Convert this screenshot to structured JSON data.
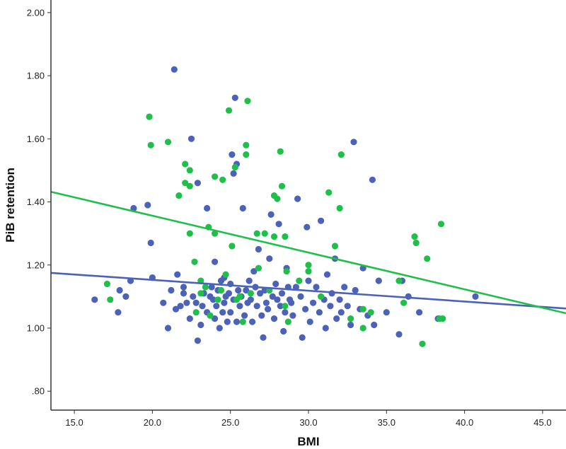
{
  "chart_data": {
    "type": "scatter",
    "title": "",
    "xlabel": "BMI",
    "ylabel": "PiB retention",
    "xlim": [
      13.5,
      46.5
    ],
    "ylim": [
      0.74,
      2.04
    ],
    "x_ticks": [
      15,
      20,
      25,
      30,
      35,
      40,
      45
    ],
    "x_tick_labels": [
      "15.0",
      "20.0",
      "25.0",
      "30.0",
      "35.0",
      "40.0",
      "45.0"
    ],
    "y_ticks": [
      0.8,
      1.0,
      1.2,
      1.4,
      1.6,
      1.8,
      2.0
    ],
    "y_tick_labels": [
      ".80",
      "1.00",
      "1.20",
      "1.40",
      "1.60",
      "1.80",
      "2.00"
    ],
    "grid": false,
    "legend": "none",
    "colors": {
      "blue": "#4c62b8",
      "green": "#1fbf4a",
      "axis": "#333333"
    },
    "series": [
      {
        "color": "#4c62b8",
        "points": [
          [
            16.3,
            1.09
          ],
          [
            17.8,
            1.05
          ],
          [
            17.9,
            1.12
          ],
          [
            18.3,
            1.1
          ],
          [
            18.8,
            1.38
          ],
          [
            18.6,
            1.15
          ],
          [
            19.7,
            1.39
          ],
          [
            19.9,
            1.27
          ],
          [
            20.0,
            1.16
          ],
          [
            20.7,
            1.08
          ],
          [
            21.0,
            1.0
          ],
          [
            21.2,
            1.12
          ],
          [
            21.4,
            1.82
          ],
          [
            21.5,
            1.06
          ],
          [
            21.6,
            1.17
          ],
          [
            21.8,
            1.07
          ],
          [
            22.0,
            1.11
          ],
          [
            22.0,
            1.13
          ],
          [
            22.2,
            1.08
          ],
          [
            22.4,
            1.03
          ],
          [
            22.5,
            1.6
          ],
          [
            22.6,
            1.1
          ],
          [
            22.8,
            1.08
          ],
          [
            22.9,
            0.96
          ],
          [
            22.9,
            1.46
          ],
          [
            23.1,
            1.01
          ],
          [
            23.2,
            1.07
          ],
          [
            23.3,
            1.11
          ],
          [
            23.5,
            1.38
          ],
          [
            23.5,
            1.05
          ],
          [
            23.7,
            1.1
          ],
          [
            23.8,
            1.13
          ],
          [
            23.9,
            1.09
          ],
          [
            24.0,
            1.21
          ],
          [
            24.0,
            1.03
          ],
          [
            24.1,
            1.07
          ],
          [
            24.2,
            1.12
          ],
          [
            24.3,
            1.0
          ],
          [
            24.4,
            1.15
          ],
          [
            24.5,
            1.05
          ],
          [
            24.6,
            1.08
          ],
          [
            24.6,
            1.16
          ],
          [
            24.7,
            1.1
          ],
          [
            24.8,
            1.02
          ],
          [
            24.9,
            1.11
          ],
          [
            25.0,
            1.05
          ],
          [
            25.0,
            1.14
          ],
          [
            25.1,
            1.55
          ],
          [
            25.2,
            1.49
          ],
          [
            25.2,
            1.09
          ],
          [
            25.3,
            1.73
          ],
          [
            25.4,
            1.52
          ],
          [
            25.4,
            1.02
          ],
          [
            25.5,
            1.12
          ],
          [
            25.6,
            1.07
          ],
          [
            25.7,
            1.1
          ],
          [
            25.8,
            1.38
          ],
          [
            25.9,
            1.04
          ],
          [
            26.0,
            1.12
          ],
          [
            26.1,
            1.08
          ],
          [
            26.2,
            1.15
          ],
          [
            26.3,
            1.09
          ],
          [
            26.4,
            1.02
          ],
          [
            26.5,
            1.18
          ],
          [
            26.6,
            1.13
          ],
          [
            26.7,
            1.07
          ],
          [
            26.8,
            1.25
          ],
          [
            26.9,
            1.11
          ],
          [
            27.0,
            1.04
          ],
          [
            27.1,
            0.97
          ],
          [
            27.2,
            1.12
          ],
          [
            27.3,
            1.08
          ],
          [
            27.4,
            1.06
          ],
          [
            27.5,
            1.22
          ],
          [
            27.6,
            1.36
          ],
          [
            27.7,
            1.1
          ],
          [
            27.8,
            1.03
          ],
          [
            27.9,
            1.14
          ],
          [
            28.0,
            1.09
          ],
          [
            28.1,
            1.33
          ],
          [
            28.2,
            1.07
          ],
          [
            28.3,
            1.11
          ],
          [
            28.4,
            0.99
          ],
          [
            28.5,
            1.05
          ],
          [
            28.6,
            1.19
          ],
          [
            28.7,
            1.13
          ],
          [
            28.8,
            1.09
          ],
          [
            28.9,
            1.08
          ],
          [
            29.0,
            1.04
          ],
          [
            29.2,
            1.13
          ],
          [
            29.3,
            1.41
          ],
          [
            29.5,
            1.1
          ],
          [
            29.6,
            0.97
          ],
          [
            29.8,
            1.06
          ],
          [
            29.9,
            1.32
          ],
          [
            30.0,
            1.15
          ],
          [
            30.1,
            1.02
          ],
          [
            30.3,
            1.08
          ],
          [
            30.5,
            1.13
          ],
          [
            30.7,
            1.05
          ],
          [
            30.8,
            1.34
          ],
          [
            31.0,
            1.09
          ],
          [
            31.1,
            1.0
          ],
          [
            31.2,
            1.17
          ],
          [
            31.4,
            1.07
          ],
          [
            31.5,
            1.11
          ],
          [
            31.7,
            1.22
          ],
          [
            31.8,
            1.03
          ],
          [
            32.0,
            1.09
          ],
          [
            32.1,
            1.05
          ],
          [
            32.3,
            1.13
          ],
          [
            32.5,
            1.07
          ],
          [
            32.7,
            1.01
          ],
          [
            32.9,
            1.59
          ],
          [
            33.0,
            1.12
          ],
          [
            33.3,
            1.06
          ],
          [
            33.5,
            1.19
          ],
          [
            33.8,
            1.04
          ],
          [
            34.1,
            1.47
          ],
          [
            34.2,
            1.01
          ],
          [
            34.5,
            1.15
          ],
          [
            35.0,
            1.05
          ],
          [
            35.8,
            0.98
          ],
          [
            36.0,
            1.15
          ],
          [
            36.4,
            1.1
          ],
          [
            37.1,
            1.05
          ],
          [
            38.3,
            1.03
          ],
          [
            40.7,
            1.1
          ]
        ]
      },
      {
        "color": "#1fbf4a",
        "points": [
          [
            17.1,
            1.14
          ],
          [
            17.3,
            1.09
          ],
          [
            19.8,
            1.67
          ],
          [
            19.9,
            1.58
          ],
          [
            21.0,
            1.59
          ],
          [
            21.7,
            1.42
          ],
          [
            22.1,
            1.52
          ],
          [
            22.1,
            1.46
          ],
          [
            22.4,
            1.5
          ],
          [
            22.4,
            1.45
          ],
          [
            22.4,
            1.3
          ],
          [
            22.7,
            1.21
          ],
          [
            22.8,
            1.05
          ],
          [
            23.1,
            1.15
          ],
          [
            23.1,
            1.11
          ],
          [
            23.4,
            1.13
          ],
          [
            23.6,
            1.32
          ],
          [
            23.7,
            1.04
          ],
          [
            24.0,
            1.48
          ],
          [
            24.0,
            1.3
          ],
          [
            24.2,
            1.09
          ],
          [
            24.4,
            1.12
          ],
          [
            24.5,
            1.47
          ],
          [
            24.7,
            1.17
          ],
          [
            24.9,
            1.69
          ],
          [
            25.1,
            1.26
          ],
          [
            25.3,
            1.51
          ],
          [
            25.4,
            1.09
          ],
          [
            25.6,
            1.1
          ],
          [
            25.8,
            1.02
          ],
          [
            26.0,
            1.58
          ],
          [
            26.0,
            1.55
          ],
          [
            26.1,
            1.72
          ],
          [
            26.3,
            1.11
          ],
          [
            26.7,
            1.3
          ],
          [
            26.8,
            1.19
          ],
          [
            27.2,
            1.3
          ],
          [
            27.5,
            1.12
          ],
          [
            27.8,
            1.42
          ],
          [
            27.8,
            1.29
          ],
          [
            28.0,
            1.41
          ],
          [
            28.2,
            1.56
          ],
          [
            28.3,
            1.45
          ],
          [
            28.5,
            1.29
          ],
          [
            28.5,
            1.07
          ],
          [
            28.6,
            1.18
          ],
          [
            28.7,
            1.02
          ],
          [
            29.4,
            1.15
          ],
          [
            30.0,
            1.2
          ],
          [
            30.0,
            1.18
          ],
          [
            30.8,
            1.1
          ],
          [
            31.3,
            1.43
          ],
          [
            31.7,
            1.26
          ],
          [
            32.0,
            1.38
          ],
          [
            32.1,
            1.55
          ],
          [
            32.7,
            1.03
          ],
          [
            33.5,
            1.0
          ],
          [
            33.5,
            1.06
          ],
          [
            34.0,
            1.05
          ],
          [
            35.8,
            1.15
          ],
          [
            36.1,
            1.08
          ],
          [
            36.8,
            1.29
          ],
          [
            36.9,
            1.27
          ],
          [
            37.3,
            0.95
          ],
          [
            37.6,
            1.22
          ],
          [
            38.4,
            1.03
          ],
          [
            38.5,
            1.33
          ],
          [
            38.6,
            1.03
          ]
        ]
      }
    ],
    "fit_lines": [
      {
        "color": "#4c62b8",
        "x": [
          13.5,
          46.5
        ],
        "y": [
          1.175,
          1.062
        ]
      },
      {
        "color": "#1fbf4a",
        "x": [
          13.5,
          46.5
        ],
        "y": [
          1.432,
          1.047
        ]
      }
    ]
  }
}
